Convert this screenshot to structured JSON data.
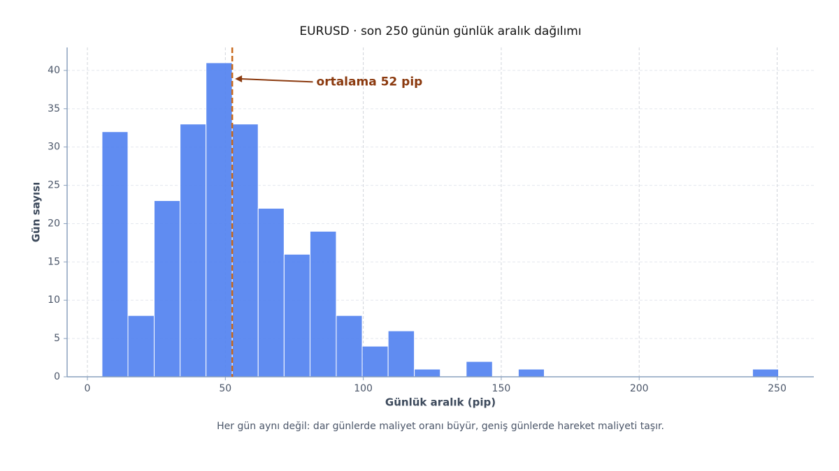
{
  "chart_data": {
    "type": "histogram",
    "title": "EURUSD · son 250 günün günlük aralık dağılımı",
    "xlabel": "Günlük aralık (pip)",
    "ylabel": "Gün sayısı",
    "footnote": "Her gün aynı değil: dar günlerde maliyet oranı büyür, geniş günlerde hareket maliyeti taşır.",
    "bins": [
      5.3,
      14.7,
      24.2,
      33.6,
      43.0,
      52.5,
      61.9,
      71.3,
      80.7,
      90.2,
      99.6,
      109.0,
      118.5,
      127.9,
      137.3,
      146.8,
      156.2,
      165.6,
      175.0,
      184.5,
      193.9,
      203.3,
      212.8,
      222.2,
      231.6,
      241.1,
      250.5
    ],
    "values": [
      32,
      8,
      23,
      33,
      41,
      33,
      22,
      16,
      19,
      8,
      4,
      6,
      1,
      0,
      2,
      0,
      1,
      0,
      0,
      0,
      0,
      0,
      0,
      0,
      0,
      1
    ],
    "color": "#4f7ff0",
    "mean_line": 52.5,
    "mean_color": "#c8691c",
    "annotation": {
      "text": "ortalama 52 pip",
      "xy": [
        53.5,
        38.9
      ],
      "xytext": [
        83,
        38.5
      ],
      "color": "#8b3a0f"
    },
    "xlim": [
      -7.35,
      263.3
    ],
    "ylim": [
      0,
      43
    ],
    "xticks": [
      0,
      50,
      100,
      150,
      200,
      250
    ],
    "yticks": [
      0,
      5,
      10,
      15,
      20,
      25,
      30,
      35,
      40
    ],
    "grid": true
  }
}
